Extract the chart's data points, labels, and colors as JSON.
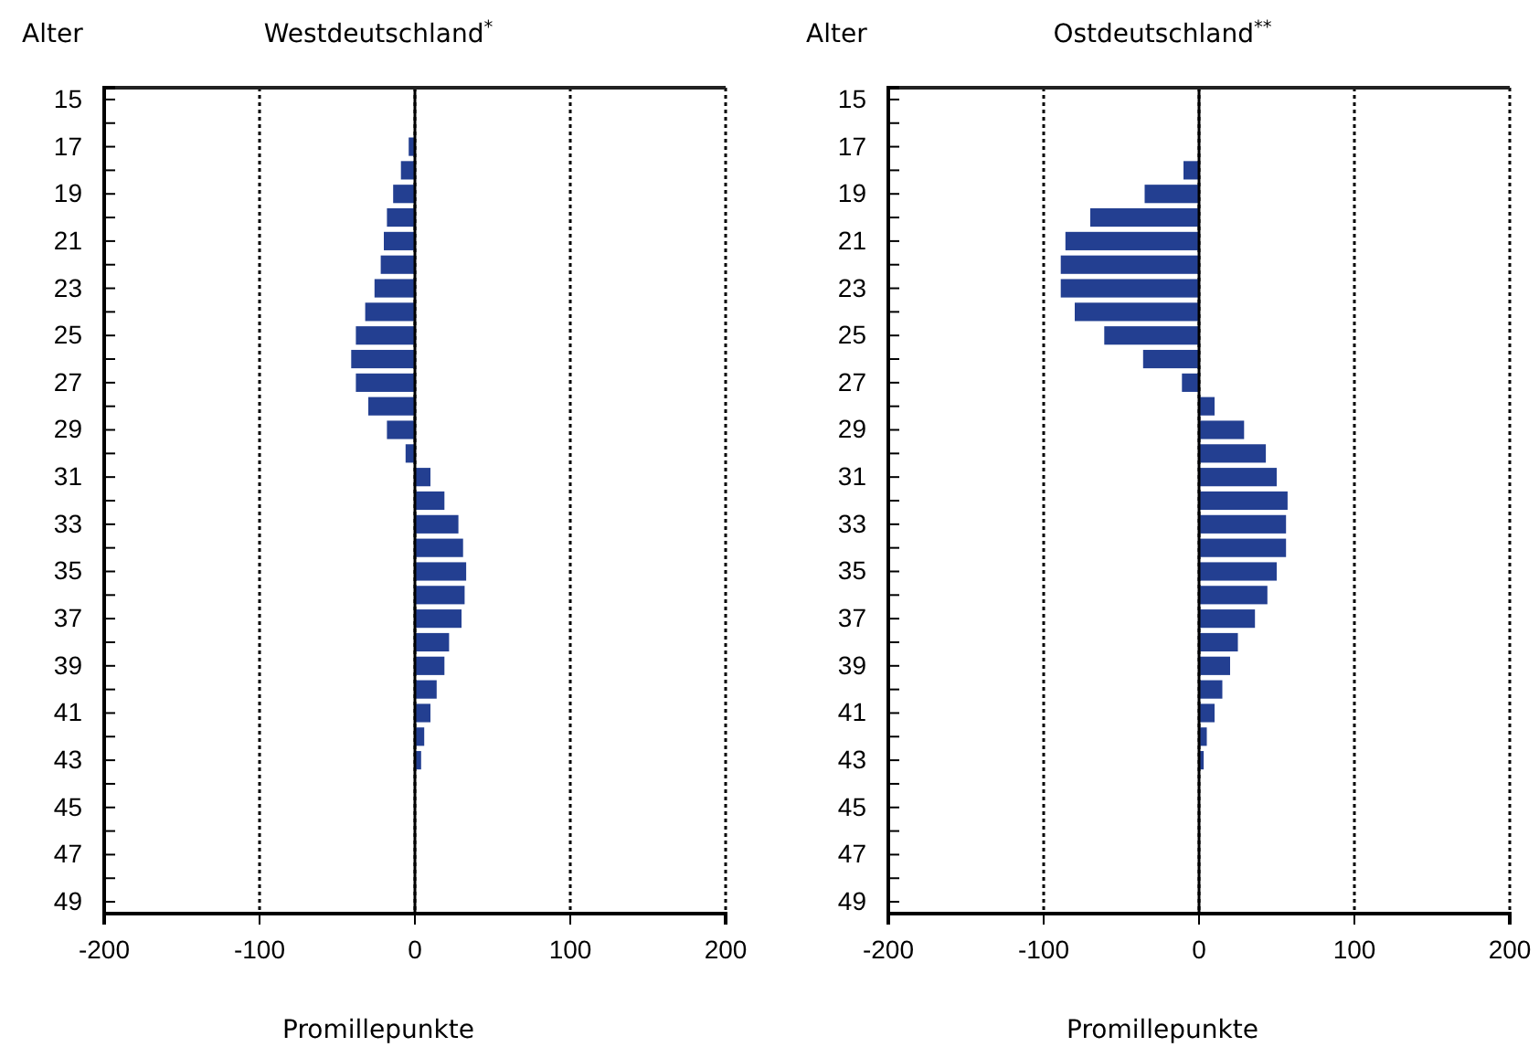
{
  "chart_data": [
    {
      "type": "bar",
      "orientation": "horizontal",
      "title": "Westdeutschland$^{*}$",
      "xlabel": "Promillepunkte",
      "ylabel": "Alter",
      "categories": [
        "15",
        null,
        "17",
        null,
        "19",
        null,
        "21",
        null,
        "23",
        null,
        "25",
        null,
        "27",
        null,
        "29",
        null,
        "31",
        null,
        "33",
        null,
        "35",
        null,
        "37",
        null,
        "39",
        null,
        "41",
        null,
        "43",
        null,
        "45",
        null,
        "47",
        null,
        "49"
      ],
      "values": [
        0,
        0,
        -4,
        -9,
        -14,
        -18,
        -20,
        -22,
        -26,
        -32,
        -38,
        -41,
        -38,
        -30,
        -18,
        -6,
        10,
        19,
        28,
        31,
        33,
        32,
        30,
        22,
        19,
        14,
        10,
        6,
        4,
        0,
        0,
        0,
        0,
        0,
        0
      ],
      "color": "#233f91",
      "xlim": [
        -200,
        200
      ],
      "xticks": [
        -200,
        -100,
        0,
        100,
        200
      ],
      "grid": "x"
    },
    {
      "type": "bar",
      "orientation": "horizontal",
      "title": "Ostdeutschland$^{**}$",
      "xlabel": "Promillepunkte",
      "ylabel": "Alter",
      "categories": [
        "15",
        null,
        "17",
        null,
        "19",
        null,
        "21",
        null,
        "23",
        null,
        "25",
        null,
        "27",
        null,
        "29",
        null,
        "31",
        null,
        "33",
        null,
        "35",
        null,
        "37",
        null,
        "39",
        null,
        "41",
        null,
        "43",
        null,
        "45",
        null,
        "47",
        null,
        "49"
      ],
      "values": [
        0,
        0,
        0,
        -10,
        -35,
        -70,
        -86,
        -89,
        -89,
        -80,
        -61,
        -36,
        -11,
        10,
        29,
        43,
        50,
        57,
        56,
        56,
        50,
        44,
        36,
        25,
        20,
        15,
        10,
        5,
        3,
        0,
        0,
        0,
        0,
        0,
        0
      ],
      "color": "#233f91",
      "xlim": [
        -200,
        200
      ],
      "xticks": [
        -200,
        -100,
        0,
        100,
        200
      ],
      "grid": "x"
    }
  ]
}
